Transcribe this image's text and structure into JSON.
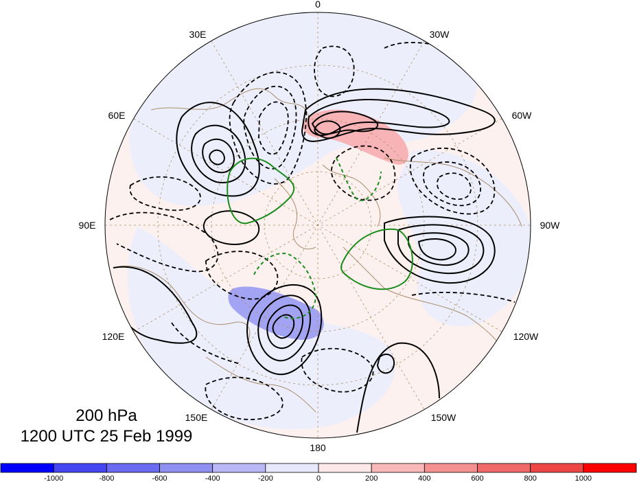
{
  "map": {
    "projection": "north-polar-stereographic",
    "longitude_labels": [
      "0",
      "30W",
      "60W",
      "90W",
      "120W",
      "150W",
      "180",
      "150E",
      "120E",
      "90E",
      "60E",
      "30E"
    ],
    "contour_colors": {
      "positive": "#000000",
      "negative": "#000000",
      "green": "#1a8c1a",
      "coast": "#a88c6a",
      "grid": "#b0926a"
    },
    "shading": {
      "positive": "#f6a3a8",
      "negative": "#9b9bf0"
    }
  },
  "title": {
    "level": "200 hPa",
    "time": "1200 UTC 25 Feb 1999"
  },
  "colorbar": {
    "labels": [
      "-1000",
      "-800",
      "-600",
      "-400",
      "-200",
      "0",
      "200",
      "400",
      "600",
      "800",
      "1000"
    ],
    "colors": [
      "#0000ff",
      "#4545f2",
      "#6b6bf2",
      "#9090f2",
      "#b8b8f6",
      "#e8e8fc",
      "#fce8e8",
      "#f8b8b8",
      "#f49090",
      "#f06a6a",
      "#ee4545",
      "#ff0000"
    ]
  }
}
